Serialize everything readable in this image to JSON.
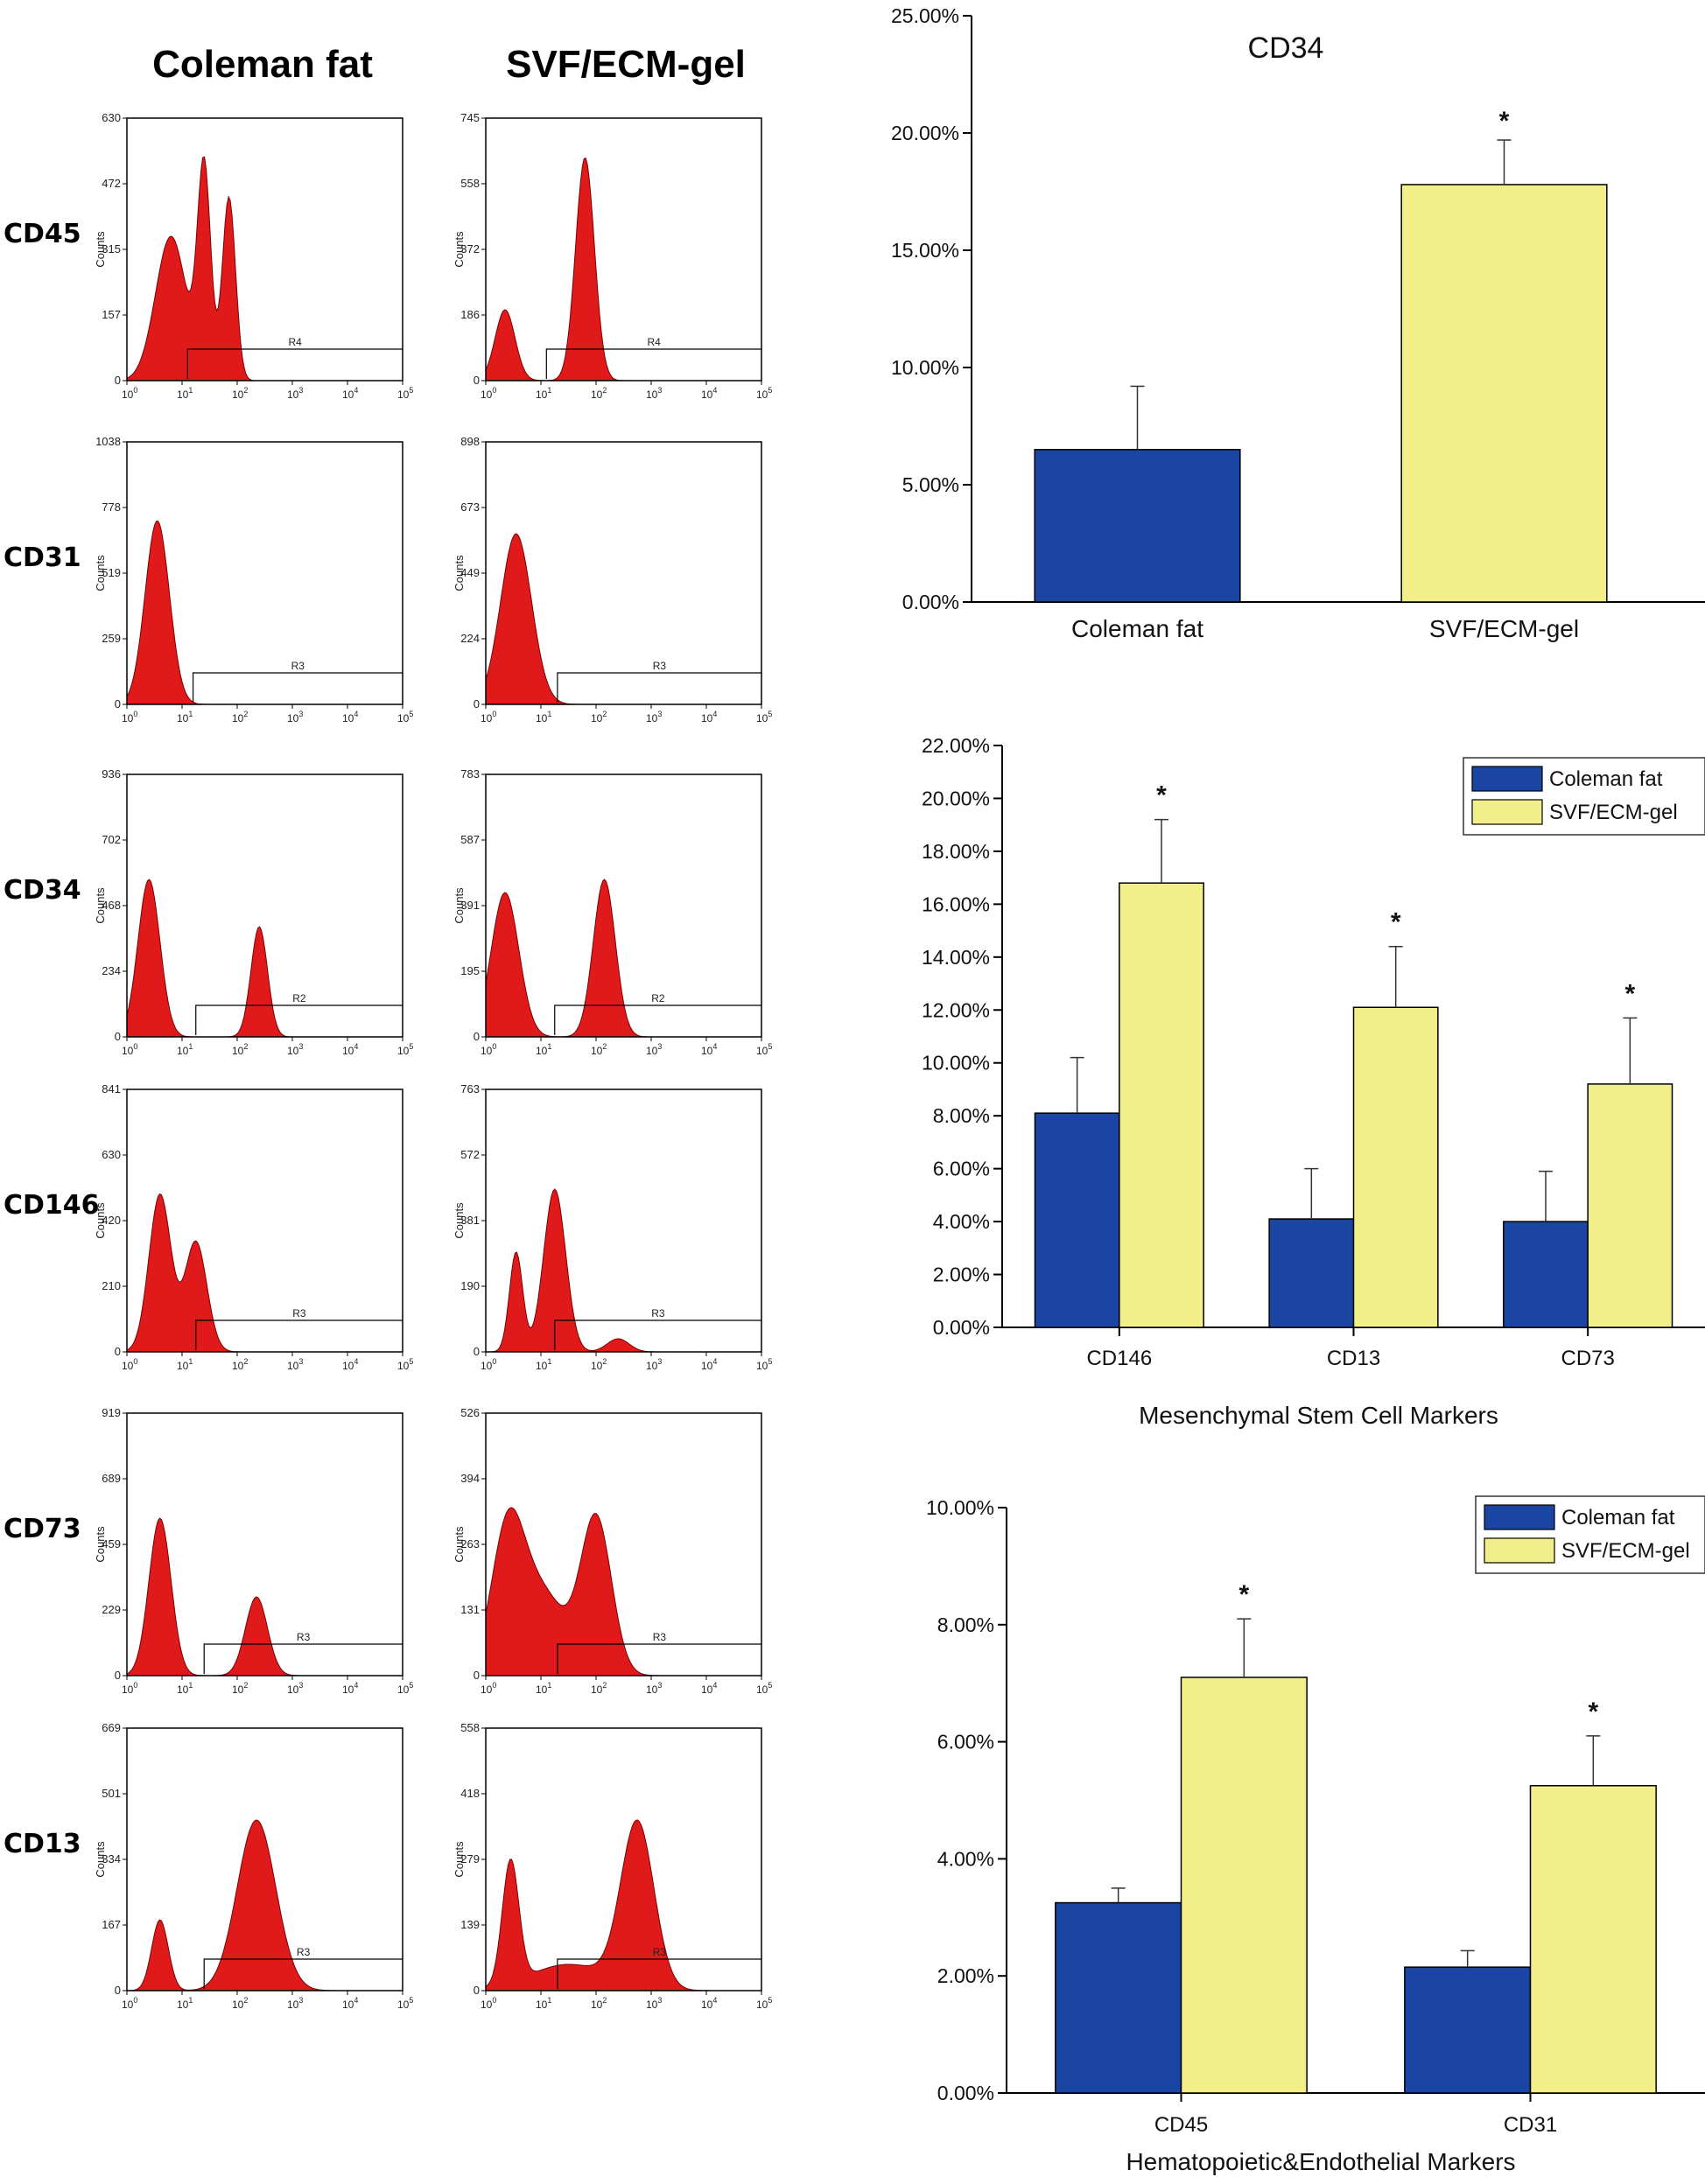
{
  "headers": {
    "col1": "Coleman fat",
    "col2": "SVF/ECM-gel"
  },
  "colors": {
    "histogram_fill": "#e01a1a",
    "coleman_bar": "#1b45a2",
    "svf_bar": "#f2ef8a",
    "axis": "#000000"
  },
  "histograms": [
    {
      "marker": "CD45",
      "panels": [
        {
          "group": "Coleman fat",
          "counts_max": "630",
          "y_ticks": [
            "0",
            "157",
            "315",
            "472",
            "630"
          ],
          "y_label": "Counts",
          "x_ticks": [
            "10",
            "10",
            "10",
            "10",
            "10",
            "10"
          ],
          "x_exponents": [
            "0",
            "1",
            "2",
            "3",
            "4",
            "5"
          ],
          "gate": "R4",
          "gate_start_log": 1.1,
          "peaks": [
            {
              "pos": 0.8,
              "height": 0.55,
              "width": 0.28
            },
            {
              "pos": 1.4,
              "height": 0.8,
              "width": 0.12
            },
            {
              "pos": 1.85,
              "height": 0.7,
              "width": 0.12
            }
          ]
        },
        {
          "group": "SVF/ECM-gel",
          "counts_max": "745",
          "y_ticks": [
            "0",
            "186",
            "372",
            "558",
            "745"
          ],
          "y_label": "Counts",
          "x_ticks": [
            "10",
            "10",
            "10",
            "10",
            "10",
            "10"
          ],
          "x_exponents": [
            "0",
            "1",
            "2",
            "3",
            "4",
            "5"
          ],
          "gate": "R4",
          "gate_start_log": 1.1,
          "peaks": [
            {
              "pos": 0.35,
              "height": 0.27,
              "width": 0.18
            },
            {
              "pos": 1.8,
              "height": 0.85,
              "width": 0.17
            }
          ]
        }
      ]
    },
    {
      "marker": "CD31",
      "panels": [
        {
          "group": "Coleman fat",
          "counts_max": "1038",
          "y_ticks": [
            "0",
            "259",
            "519",
            "778",
            "1038"
          ],
          "y_label": "Counts",
          "x_ticks": [
            "10",
            "10",
            "10",
            "10",
            "10",
            "10"
          ],
          "x_exponents": [
            "0",
            "1",
            "2",
            "3",
            "4",
            "5"
          ],
          "gate": "R3",
          "gate_start_log": 1.2,
          "peaks": [
            {
              "pos": 0.55,
              "height": 0.7,
              "width": 0.22
            }
          ]
        },
        {
          "group": "SVF/ECM-gel",
          "counts_max": "898",
          "y_ticks": [
            "0",
            "224",
            "449",
            "673",
            "898"
          ],
          "y_label": "Counts",
          "x_ticks": [
            "10",
            "10",
            "10",
            "10",
            "10",
            "10"
          ],
          "x_exponents": [
            "0",
            "1",
            "2",
            "3",
            "4",
            "5"
          ],
          "gate": "R3",
          "gate_start_log": 1.3,
          "peaks": [
            {
              "pos": 0.55,
              "height": 0.65,
              "width": 0.28
            }
          ]
        }
      ]
    },
    {
      "marker": "CD34",
      "panels": [
        {
          "group": "Coleman fat",
          "counts_max": "936",
          "y_ticks": [
            "0",
            "234",
            "468",
            "702",
            "936"
          ],
          "y_label": "Counts",
          "x_ticks": [
            "10",
            "10",
            "10",
            "10",
            "10",
            "10"
          ],
          "x_exponents": [
            "0",
            "1",
            "2",
            "3",
            "4",
            "5"
          ],
          "gate": "R2",
          "gate_start_log": 1.25,
          "peaks": [
            {
              "pos": 0.4,
              "height": 0.6,
              "width": 0.2
            },
            {
              "pos": 2.4,
              "height": 0.42,
              "width": 0.15
            }
          ]
        },
        {
          "group": "SVF/ECM-gel",
          "counts_max": "783",
          "y_ticks": [
            "0",
            "195",
            "391",
            "587",
            "783"
          ],
          "y_label": "Counts",
          "x_ticks": [
            "10",
            "10",
            "10",
            "10",
            "10",
            "10"
          ],
          "x_exponents": [
            "0",
            "1",
            "2",
            "3",
            "4",
            "5"
          ],
          "gate": "R2",
          "gate_start_log": 1.25,
          "peaks": [
            {
              "pos": 0.35,
              "height": 0.55,
              "width": 0.25
            },
            {
              "pos": 2.15,
              "height": 0.6,
              "width": 0.2
            }
          ]
        }
      ]
    },
    {
      "marker": "CD146",
      "panels": [
        {
          "group": "Coleman fat",
          "counts_max": "841",
          "y_ticks": [
            "0",
            "210",
            "420",
            "630",
            "841"
          ],
          "y_label": "Counts",
          "x_ticks": [
            "10",
            "10",
            "10",
            "10",
            "10",
            "10"
          ],
          "x_exponents": [
            "0",
            "1",
            "2",
            "3",
            "4",
            "5"
          ],
          "gate": "R3",
          "gate_start_log": 1.25,
          "peaks": [
            {
              "pos": 0.6,
              "height": 0.6,
              "width": 0.2
            },
            {
              "pos": 1.25,
              "height": 0.42,
              "width": 0.2
            }
          ]
        },
        {
          "group": "SVF/ECM-gel",
          "counts_max": "763",
          "y_ticks": [
            "0",
            "190",
            "381",
            "572",
            "763"
          ],
          "y_label": "Counts",
          "x_ticks": [
            "10",
            "10",
            "10",
            "10",
            "10",
            "10"
          ],
          "x_exponents": [
            "0",
            "1",
            "2",
            "3",
            "4",
            "5"
          ],
          "gate": "R3",
          "gate_start_log": 1.25,
          "peaks": [
            {
              "pos": 0.55,
              "height": 0.38,
              "width": 0.12
            },
            {
              "pos": 1.25,
              "height": 0.62,
              "width": 0.2
            },
            {
              "pos": 2.4,
              "height": 0.05,
              "width": 0.2
            }
          ]
        }
      ]
    },
    {
      "marker": "CD73",
      "panels": [
        {
          "group": "Coleman fat",
          "counts_max": "919",
          "y_ticks": [
            "0",
            "229",
            "459",
            "689",
            "919"
          ],
          "y_label": "Counts",
          "x_ticks": [
            "10",
            "10",
            "10",
            "10",
            "10",
            "10"
          ],
          "x_exponents": [
            "0",
            "1",
            "2",
            "3",
            "4",
            "5"
          ],
          "gate": "R3",
          "gate_start_log": 1.4,
          "peaks": [
            {
              "pos": 0.6,
              "height": 0.6,
              "width": 0.2
            },
            {
              "pos": 2.35,
              "height": 0.3,
              "width": 0.2
            }
          ]
        },
        {
          "group": "SVF/ECM-gel",
          "counts_max": "526",
          "y_ticks": [
            "0",
            "131",
            "263",
            "394",
            "526"
          ],
          "y_label": "Counts",
          "x_ticks": [
            "10",
            "10",
            "10",
            "10",
            "10",
            "10"
          ],
          "x_exponents": [
            "0",
            "1",
            "2",
            "3",
            "4",
            "5"
          ],
          "gate": "R3",
          "gate_start_log": 1.3,
          "peaks": [
            {
              "pos": 0.4,
              "height": 0.55,
              "width": 0.3
            },
            {
              "pos": 1.05,
              "height": 0.3,
              "width": 0.4
            },
            {
              "pos": 2.0,
              "height": 0.6,
              "width": 0.28
            }
          ]
        }
      ]
    },
    {
      "marker": "CD13",
      "panels": [
        {
          "group": "Coleman fat",
          "counts_max": "669",
          "y_ticks": [
            "0",
            "167",
            "334",
            "501",
            "669"
          ],
          "y_label": "Counts",
          "x_ticks": [
            "10",
            "10",
            "10",
            "10",
            "10",
            "10"
          ],
          "x_exponents": [
            "0",
            "1",
            "2",
            "3",
            "4",
            "5"
          ],
          "gate": "R3",
          "gate_start_log": 1.4,
          "peaks": [
            {
              "pos": 0.6,
              "height": 0.27,
              "width": 0.15
            },
            {
              "pos": 2.35,
              "height": 0.65,
              "width": 0.35
            }
          ]
        },
        {
          "group": "SVF/ECM-gel",
          "counts_max": "558",
          "y_ticks": [
            "0",
            "139",
            "279",
            "418",
            "558"
          ],
          "y_label": "Counts",
          "x_ticks": [
            "10",
            "10",
            "10",
            "10",
            "10",
            "10"
          ],
          "x_exponents": [
            "0",
            "1",
            "2",
            "3",
            "4",
            "5"
          ],
          "gate": "R3",
          "gate_start_log": 1.3,
          "peaks": [
            {
              "pos": 0.45,
              "height": 0.47,
              "width": 0.15
            },
            {
              "pos": 1.5,
              "height": 0.1,
              "width": 0.7
            },
            {
              "pos": 2.75,
              "height": 0.63,
              "width": 0.3
            }
          ]
        }
      ]
    }
  ],
  "chart_data": [
    {
      "type": "bar",
      "title": "CD34",
      "xlabel": "",
      "ylabel": "",
      "categories": [
        "Coleman fat",
        "SVF/ECM-gel"
      ],
      "values": [
        6.5,
        17.8
      ],
      "errors": [
        2.7,
        1.9
      ],
      "significance": [
        "",
        "*"
      ],
      "ylim": [
        0,
        25
      ],
      "y_ticks": [
        "0.00%",
        "5.00%",
        "10.00%",
        "15.00%",
        "20.00%",
        "25.00%"
      ],
      "legend": "none"
    },
    {
      "type": "bar",
      "title": "",
      "xlabel": "Mesenchymal Stem Cell Markers",
      "ylabel": "",
      "categories": [
        "CD146",
        "CD13",
        "CD73"
      ],
      "series": [
        {
          "name": "Coleman fat",
          "values": [
            8.1,
            4.1,
            4.0
          ],
          "errors": [
            2.1,
            1.9,
            1.9
          ],
          "significance": [
            "",
            "",
            ""
          ]
        },
        {
          "name": "SVF/ECM-gel",
          "values": [
            16.8,
            12.1,
            9.2
          ],
          "errors": [
            2.4,
            2.3,
            2.5
          ],
          "significance": [
            "*",
            "*",
            "*"
          ]
        }
      ],
      "ylim": [
        0,
        22
      ],
      "y_ticks": [
        "0.00%",
        "2.00%",
        "4.00%",
        "6.00%",
        "8.00%",
        "10.00%",
        "12.00%",
        "14.00%",
        "16.00%",
        "18.00%",
        "20.00%",
        "22.00%"
      ],
      "legend": "top-right"
    },
    {
      "type": "bar",
      "title": "",
      "xlabel": "Hematopoietic&Endothelial Markers",
      "ylabel": "",
      "categories": [
        "CD45",
        "CD31"
      ],
      "series": [
        {
          "name": "Coleman fat",
          "values": [
            3.25,
            2.15
          ],
          "errors": [
            0.25,
            0.28
          ],
          "significance": [
            "",
            ""
          ]
        },
        {
          "name": "SVF/ECM-gel",
          "values": [
            7.1,
            5.25
          ],
          "errors": [
            1.0,
            0.85
          ],
          "significance": [
            "*",
            "*"
          ]
        }
      ],
      "ylim": [
        0,
        10
      ],
      "y_ticks": [
        "0.00%",
        "2.00%",
        "4.00%",
        "6.00%",
        "8.00%",
        "10.00%"
      ],
      "legend": "top-right"
    }
  ]
}
